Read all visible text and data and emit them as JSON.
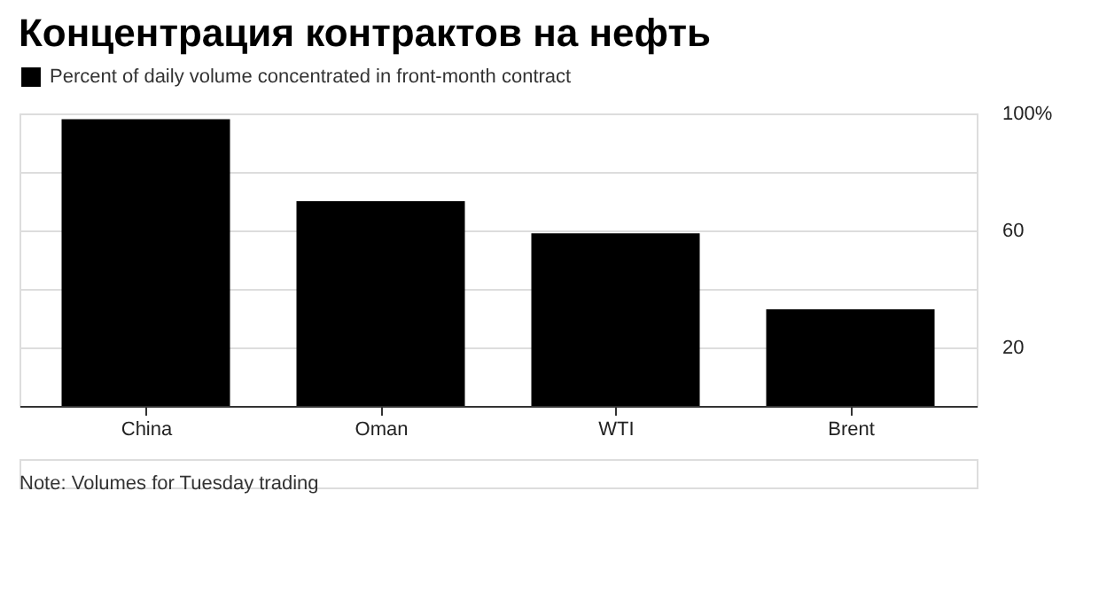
{
  "chart_data": {
    "type": "bar",
    "title": "Концентрация контрактов на нефть",
    "categories": [
      "China",
      "Oman",
      "WTI",
      "Brent"
    ],
    "series": [
      {
        "name": "Percent of daily volume concentrated in front-month contract",
        "color": "#000000",
        "values": [
          98,
          70,
          59,
          33
        ]
      }
    ],
    "ylim": [
      0,
      100
    ],
    "yticks": [
      {
        "value": 20,
        "label": "20"
      },
      {
        "value": 40,
        "label": null
      },
      {
        "value": 60,
        "label": "60"
      },
      {
        "value": 80,
        "label": null
      },
      {
        "value": 100,
        "label": "100%"
      }
    ],
    "grid": "y",
    "legend": "top left",
    "annotations": [
      "Note: Volumes for Tuesday trading"
    ]
  }
}
